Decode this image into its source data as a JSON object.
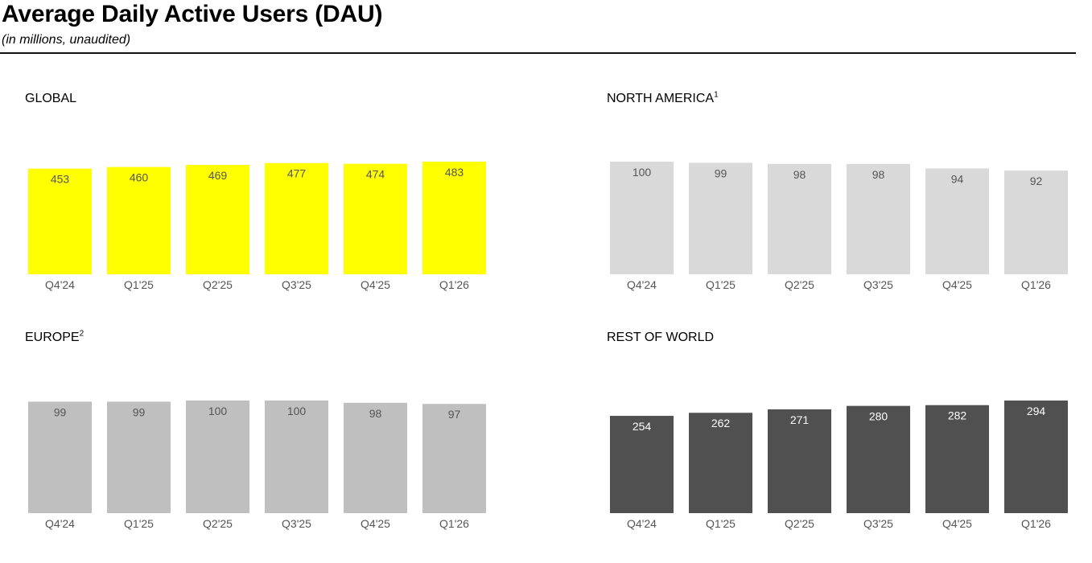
{
  "header": {
    "title": "Average Daily Active Users (DAU)",
    "subtitle": "(in millions, unaudited)"
  },
  "chart_data": [
    {
      "type": "bar",
      "title": "GLOBAL",
      "footnote": "",
      "categories": [
        "Q4'24",
        "Q1'25",
        "Q2'25",
        "Q3'25",
        "Q4'25",
        "Q1'26"
      ],
      "values": [
        453,
        460,
        469,
        477,
        474,
        483
      ],
      "bar_color": "#ffff00",
      "label_color": "#555555",
      "ylim": [
        0,
        483
      ],
      "grid": false
    },
    {
      "type": "bar",
      "title": "NORTH AMERICA",
      "footnote": "1",
      "categories": [
        "Q4'24",
        "Q1'25",
        "Q2'25",
        "Q3'25",
        "Q4'25",
        "Q1'26"
      ],
      "values": [
        100,
        99,
        98,
        98,
        94,
        92
      ],
      "bar_color": "#d9d9d9",
      "label_color": "#555555",
      "ylim": [
        0,
        100
      ],
      "grid": false
    },
    {
      "type": "bar",
      "title": "EUROPE",
      "footnote": "2",
      "categories": [
        "Q4'24",
        "Q1'25",
        "Q2'25",
        "Q3'25",
        "Q4'25",
        "Q1'26"
      ],
      "values": [
        99,
        99,
        100,
        100,
        98,
        97
      ],
      "bar_color": "#bfbfbf",
      "label_color": "#555555",
      "ylim": [
        0,
        100
      ],
      "grid": false
    },
    {
      "type": "bar",
      "title": "REST OF WORLD",
      "footnote": "",
      "categories": [
        "Q4'24",
        "Q1'25",
        "Q2'25",
        "Q3'25",
        "Q4'25",
        "Q1'26"
      ],
      "values": [
        254,
        262,
        271,
        280,
        282,
        294
      ],
      "bar_color": "#505050",
      "label_color": "#ffffff",
      "ylim": [
        0,
        294
      ],
      "grid": false
    }
  ]
}
